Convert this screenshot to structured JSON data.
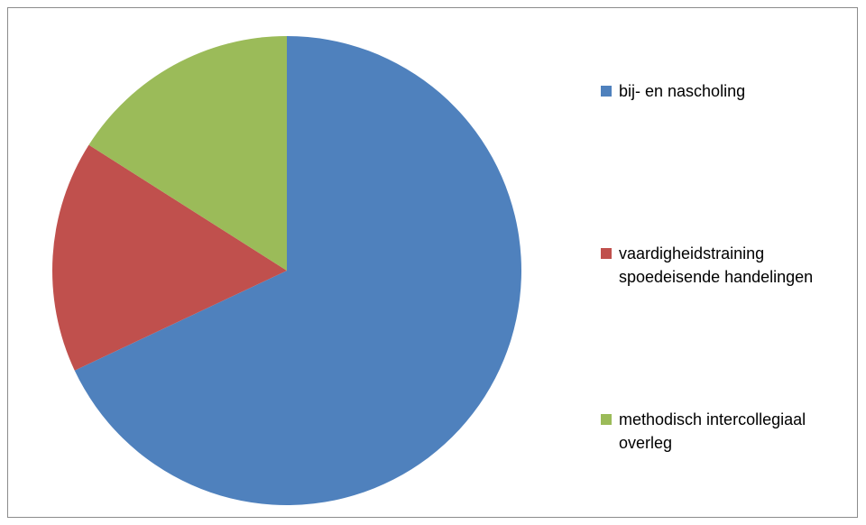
{
  "chart_data": {
    "type": "pie",
    "categories": [
      "bij- en nascholing",
      "vaardigheidstraining spoedeisende handelingen",
      "methodisch intercollegiaal overleg"
    ],
    "values": [
      68,
      16,
      16
    ],
    "colors": [
      "#4f81bd",
      "#c0504d",
      "#9bbb59"
    ],
    "legend": "right"
  }
}
